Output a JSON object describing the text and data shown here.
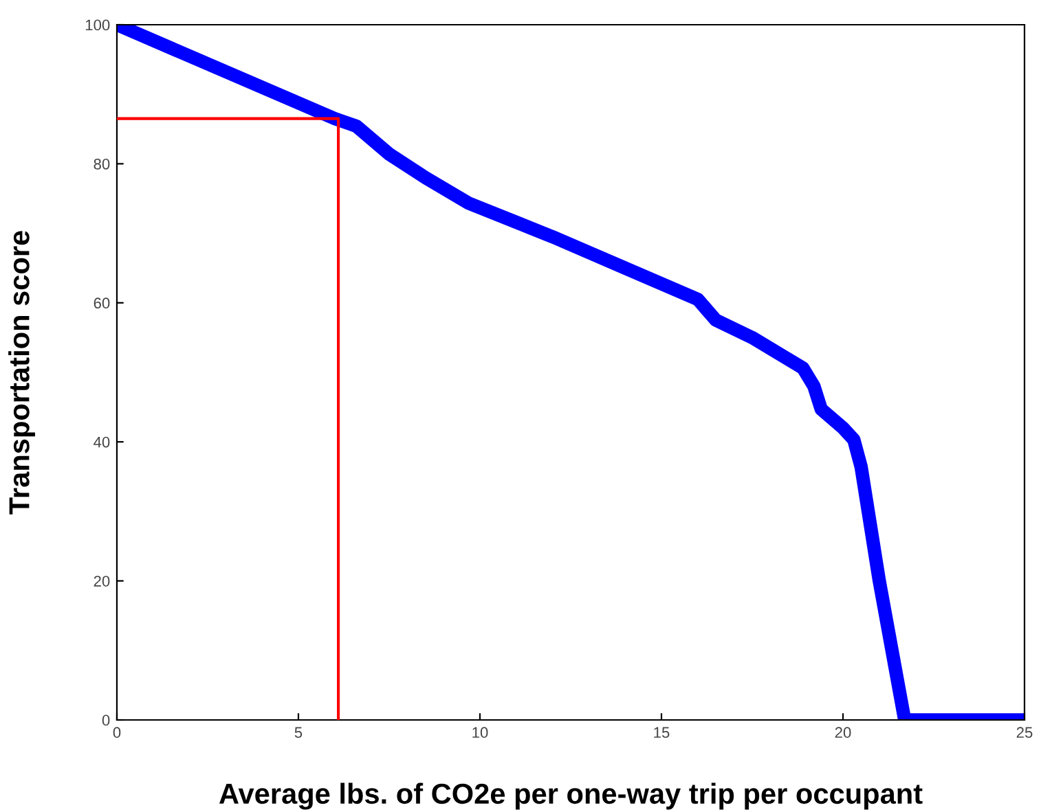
{
  "chart_data": {
    "type": "line",
    "xlabel": "Average lbs. of CO2e per one-way trip per occupant",
    "ylabel": "Transportation score",
    "xlim": [
      0,
      25
    ],
    "ylim": [
      0,
      100
    ],
    "xticks": [
      0,
      5,
      10,
      15,
      20,
      25
    ],
    "yticks": [
      0,
      20,
      40,
      60,
      80,
      100
    ],
    "grid": false,
    "legend": false,
    "marker": "none",
    "line_style": "solid",
    "series": [
      {
        "color": "#0000ff",
        "x": [
          0,
          6.0,
          6.6,
          7.5,
          8.5,
          9.7,
          12,
          14,
          16.0,
          16.5,
          17.5,
          18.9,
          19.2,
          19.4,
          20.0,
          20.3,
          20.5,
          21.0,
          21.7,
          22.5,
          25
        ],
        "values": [
          100,
          86.5,
          85.4,
          81.4,
          78,
          74.3,
          69.5,
          65,
          60.5,
          57.5,
          55,
          50.6,
          48,
          44.7,
          42,
          40.3,
          36.4,
          20,
          0,
          0,
          0
        ]
      },
      {
        "color": "#ff0000",
        "x": [
          0,
          6.1,
          6.1
        ],
        "values": [
          86.5,
          86.5,
          0
        ]
      }
    ]
  }
}
